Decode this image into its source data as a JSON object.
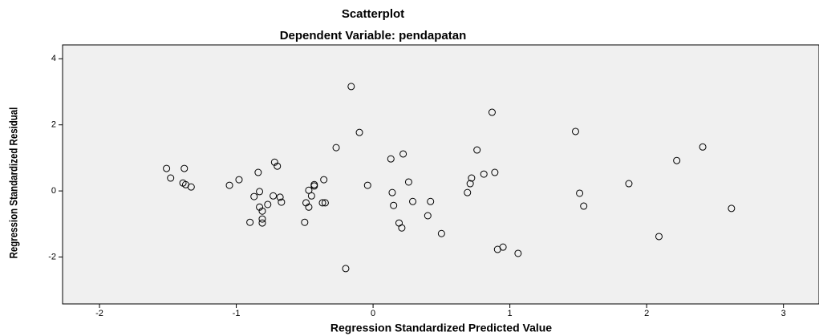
{
  "chart_data": {
    "type": "scatter",
    "title": "Scatterplot",
    "subtitle": "Dependent Variable: pendapatan",
    "x_label": "Regression Standardized Predicted Value",
    "y_label": "Regression Standardized Residual",
    "x": [
      -1.51,
      -1.48,
      -1.38,
      -1.39,
      -1.37,
      -1.33,
      -0.98,
      -1.05,
      -0.84,
      -0.87,
      -0.83,
      -0.83,
      -0.81,
      -0.9,
      -0.81,
      -0.81,
      -0.72,
      -0.7,
      -0.73,
      -0.68,
      -0.67,
      -0.77,
      -0.5,
      -0.47,
      -0.43,
      -0.43,
      -0.45,
      -0.49,
      -0.47,
      -0.36,
      -0.37,
      -0.35,
      -0.2,
      -0.16,
      -0.27,
      -0.1,
      -0.04,
      0.13,
      0.22,
      0.14,
      0.15,
      0.26,
      0.29,
      0.19,
      0.21,
      0.42,
      0.4,
      0.5,
      0.69,
      0.71,
      0.72,
      0.81,
      0.89,
      0.76,
      0.87,
      0.91,
      0.95,
      1.06,
      1.48,
      1.51,
      1.54,
      1.87,
      2.09,
      2.22,
      2.41,
      2.62
    ],
    "values": [
      0.68,
      0.39,
      0.68,
      0.24,
      0.19,
      0.12,
      0.34,
      0.17,
      0.56,
      -0.17,
      -0.02,
      -0.49,
      -0.61,
      -0.95,
      -0.85,
      -0.97,
      0.87,
      0.75,
      -0.15,
      -0.19,
      -0.34,
      -0.41,
      -0.95,
      0.02,
      0.15,
      0.19,
      -0.15,
      -0.36,
      -0.49,
      0.34,
      -0.36,
      -0.36,
      -2.35,
      3.16,
      1.31,
      1.77,
      0.17,
      0.97,
      1.12,
      -0.05,
      -0.44,
      0.27,
      -0.32,
      -0.97,
      -1.12,
      -0.32,
      -0.75,
      -1.29,
      -0.05,
      0.22,
      0.39,
      0.51,
      0.56,
      1.24,
      2.38,
      -1.77,
      -1.7,
      -1.89,
      1.8,
      -0.07,
      -0.46,
      0.22,
      -1.38,
      0.92,
      1.33,
      -0.53
    ],
    "color": "#000000",
    "xlim": [
      -2.27,
      3.26
    ],
    "xticks": [
      -2,
      -1,
      0,
      1,
      2,
      3
    ],
    "ylim": [
      -3.42,
      4.42
    ],
    "yticks": [
      -2,
      0,
      2,
      4
    ]
  }
}
